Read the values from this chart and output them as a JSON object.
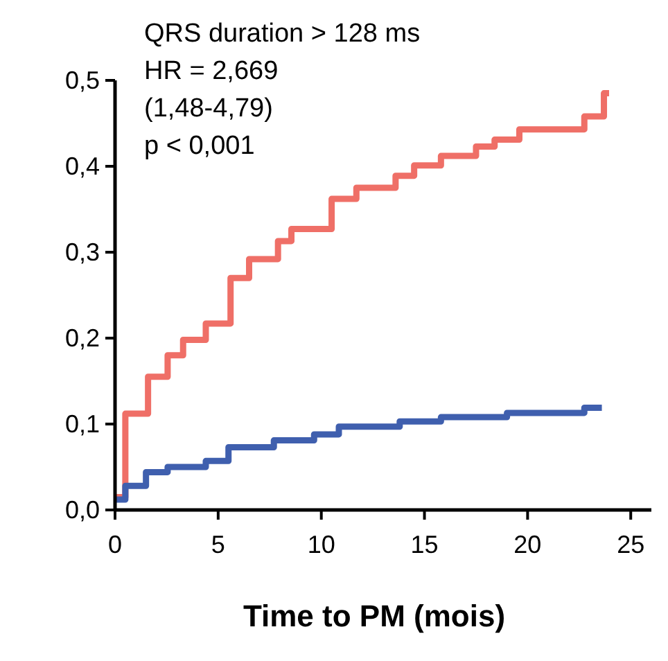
{
  "chart_data": {
    "type": "step",
    "xlabel": "Time to PM (mois)",
    "annotations": [
      "QRS duration > 128 ms",
      "HR = 2,669",
      "(1,48-4,79)",
      "p < 0,001"
    ],
    "xlim": [
      0,
      26
    ],
    "xticks": [
      0,
      5,
      10,
      15,
      20,
      25
    ],
    "ylim": [
      0,
      0.5
    ],
    "yticks": [
      {
        "value": 0,
        "label": "0,0"
      },
      {
        "value": 0.1,
        "label": "0,1"
      },
      {
        "value": 0.2,
        "label": "0,2"
      },
      {
        "value": 0.3,
        "label": "0,3"
      },
      {
        "value": 0.4,
        "label": "0,4"
      },
      {
        "value": 0.5,
        "label": "0,5"
      }
    ],
    "grid": false,
    "series": [
      {
        "color": "#ef6f67",
        "x": [
          0,
          0.5,
          1.6,
          2.55,
          3.3,
          4.4,
          5.6,
          6.5,
          7.9,
          8.55,
          10.5,
          11.7,
          13.6,
          14.5,
          15.8,
          17.5,
          18.4,
          19.6,
          22.75,
          23.7,
          23.95
        ],
        "values": [
          0.015,
          0.112,
          0.155,
          0.18,
          0.198,
          0.217,
          0.27,
          0.292,
          0.313,
          0.327,
          0.362,
          0.375,
          0.389,
          0.401,
          0.412,
          0.423,
          0.431,
          0.443,
          0.458,
          0.485,
          0.485
        ]
      },
      {
        "color": "#3f5fae",
        "x": [
          0,
          0.5,
          1.5,
          2.55,
          4.4,
          5.5,
          7.7,
          9.65,
          10.85,
          13.8,
          15.8,
          19,
          22.75,
          23.6
        ],
        "values": [
          0.012,
          0.028,
          0.044,
          0.05,
          0.057,
          0.073,
          0.081,
          0.088,
          0.097,
          0.103,
          0.108,
          0.113,
          0.119,
          0.119
        ]
      }
    ]
  }
}
